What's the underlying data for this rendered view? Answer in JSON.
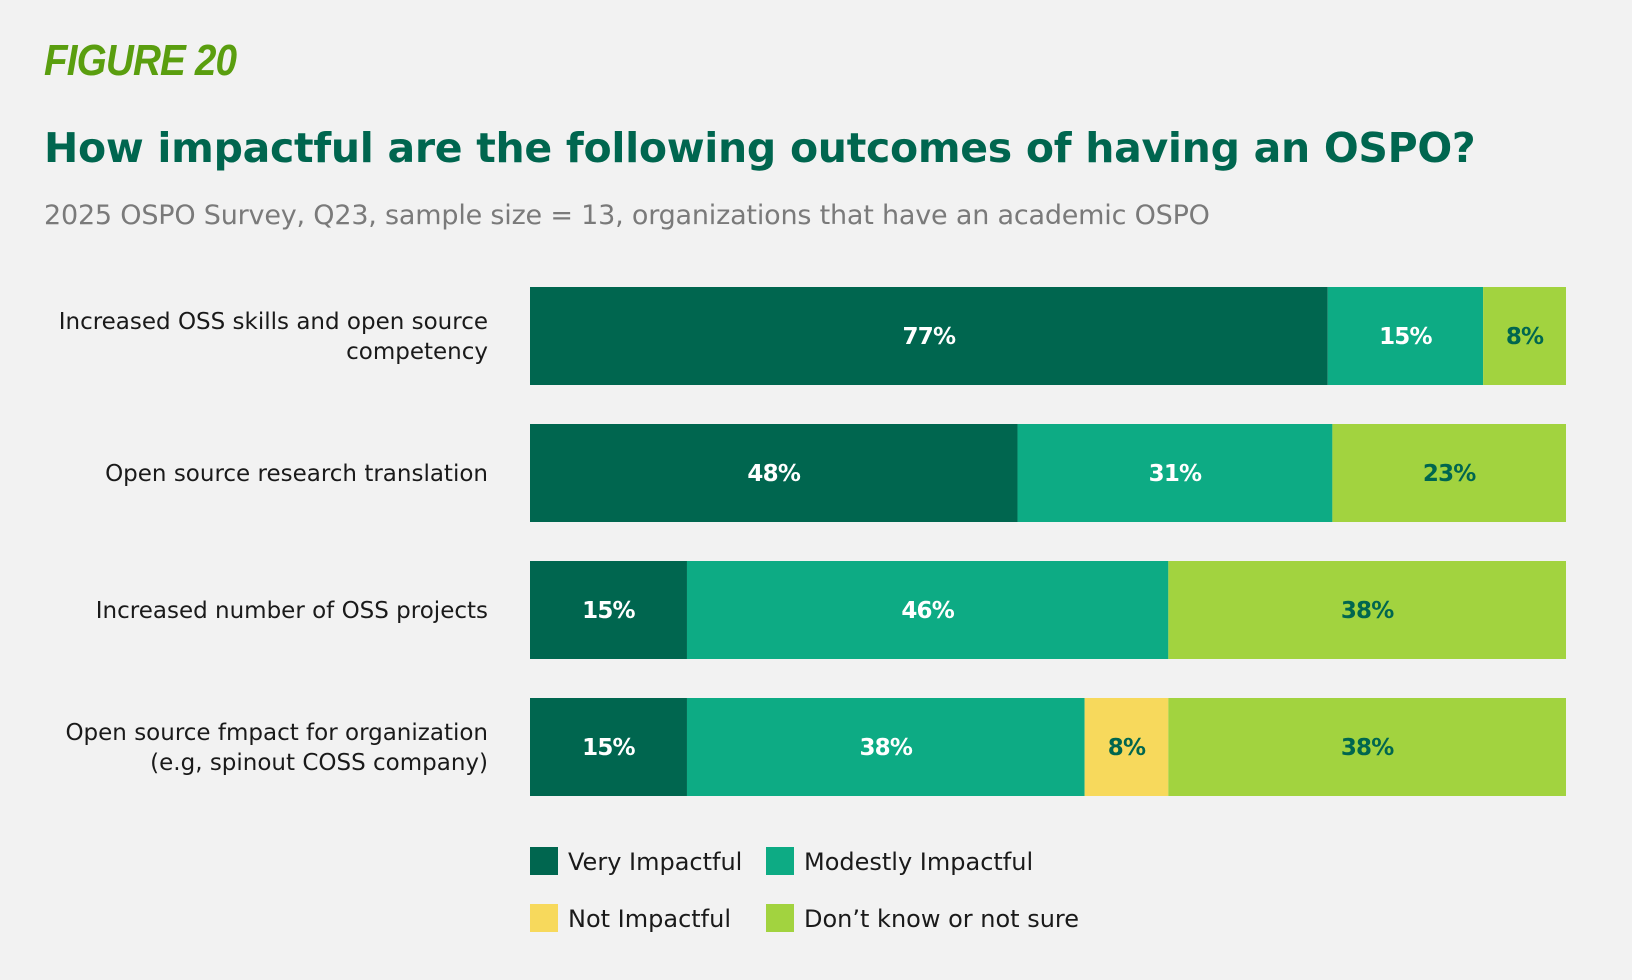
{
  "header": {
    "figure_label": "FIGURE 20"
  },
  "colors": {
    "figure_label": "#5a9e0f",
    "title": "#00664f",
    "subtitle": "#7a7a7a",
    "label_dark": "#00664f",
    "label_light": "#ffffff"
  },
  "chart_data": {
    "type": "bar",
    "orientation": "horizontal",
    "stacked": true,
    "title": "How impactful are the following outcomes of having an OSPO?",
    "subtitle": "2025 OSPO Survey, Q23, sample size = 13, organizations that have an academic OSPO",
    "categories": [
      [
        "Increased OSS skills and open source",
        "competency"
      ],
      [
        "Open source research translation"
      ],
      [
        "Increased number of OSS projects"
      ],
      [
        "Open source fmpact for organization",
        "(e.g, spinout COSS company)"
      ]
    ],
    "series": [
      {
        "name": "Very Impactful",
        "color": "#00664f",
        "label_color": "#ffffff",
        "values": [
          77,
          48,
          15,
          15
        ]
      },
      {
        "name": "Modestly Impactful",
        "color": "#0dab84",
        "label_color": "#ffffff",
        "values": [
          15,
          31,
          46,
          38
        ]
      },
      {
        "name": "Not Impactful",
        "color": "#f7d95c",
        "label_color": "#00664f",
        "values": [
          0,
          0,
          0,
          8
        ]
      },
      {
        "name": "Don’t know or not sure",
        "color": "#a2d33f",
        "label_color": "#00664f",
        "values": [
          8,
          23,
          38,
          38
        ]
      }
    ],
    "value_suffix": "%",
    "xlim": [
      0,
      100
    ],
    "grid": false,
    "legend": {
      "placement": "bottom",
      "rows": [
        [
          0,
          1
        ],
        [
          2,
          3
        ]
      ]
    }
  }
}
